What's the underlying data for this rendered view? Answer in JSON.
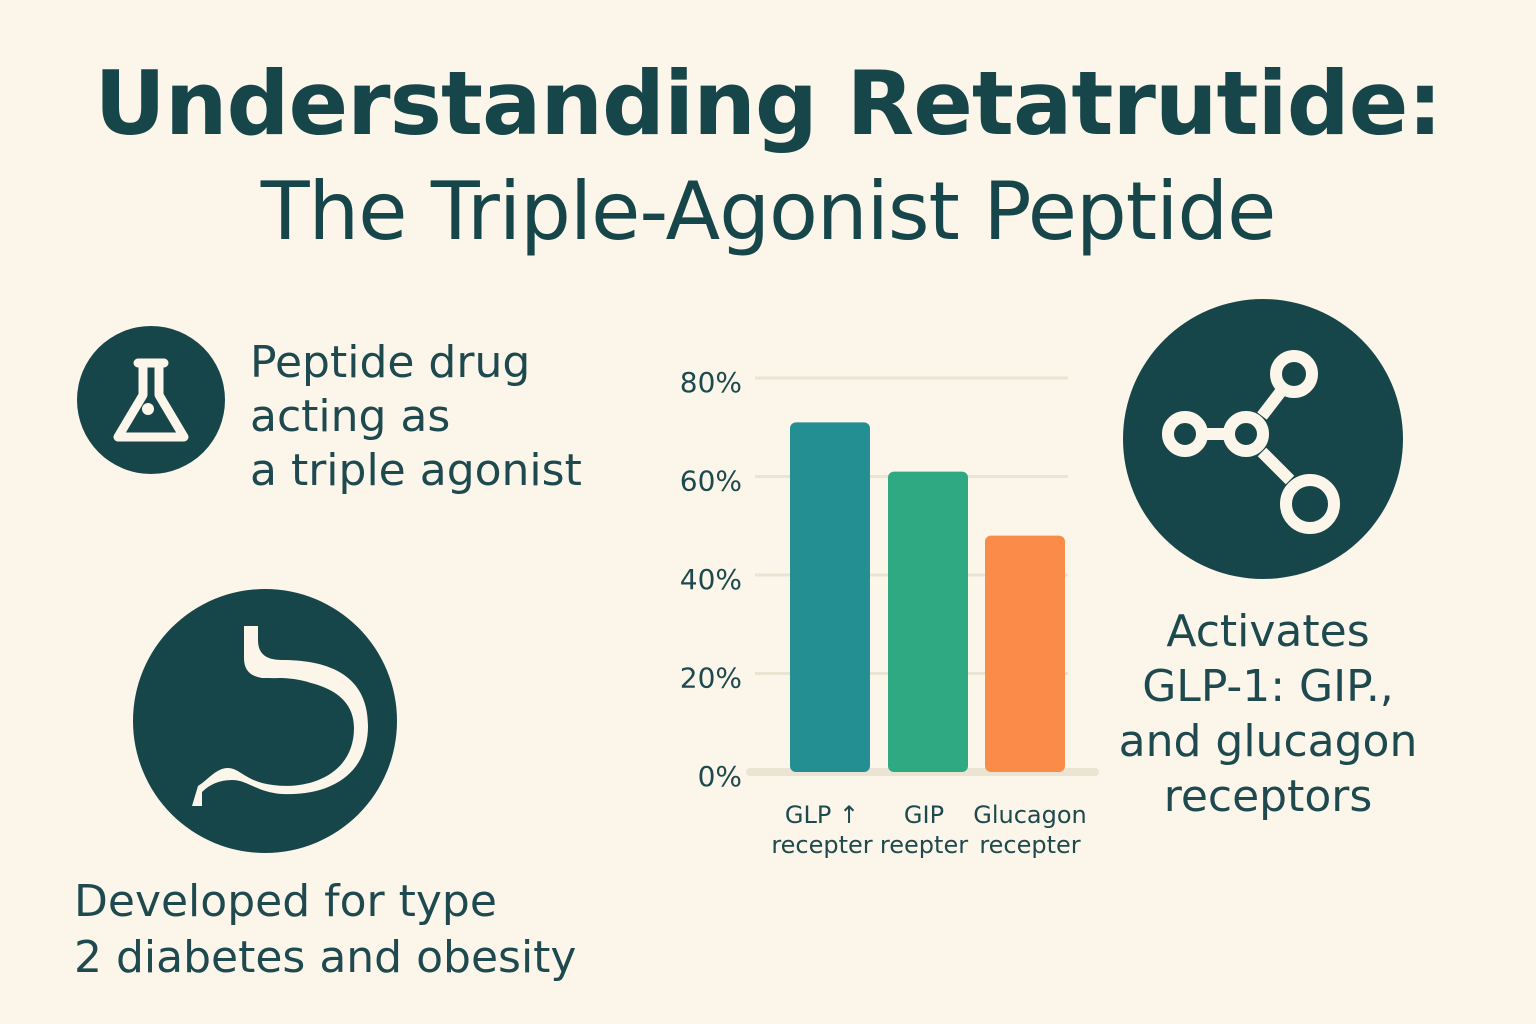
{
  "title": {
    "line1": "Understanding Retatrutide:",
    "line2": "The Triple-Agonist Peptide"
  },
  "features": {
    "peptide": {
      "icon": "flask-icon",
      "lines": [
        "Peptide drug",
        "acting as",
        "a triple agonist"
      ]
    },
    "developed": {
      "icon": "stomach-icon",
      "lines": [
        "Developed for type",
        "2 diabetes and obesity"
      ]
    },
    "activates": {
      "icon": "molecule-icon",
      "lines": [
        "Activates",
        "GLP-1: GIP.,",
        "and glucagon",
        "receptors"
      ]
    }
  },
  "colors": {
    "background": "#fcf6ea",
    "primary": "#17464a",
    "bar_glp": "#238f93",
    "bar_gip": "#2fa982",
    "bar_glucagon": "#fb8b49"
  },
  "chart_data": {
    "type": "bar",
    "categories": [
      [
        "GLP ↑",
        "recepter"
      ],
      [
        "GIP",
        "reepter"
      ],
      [
        "Glucagon",
        "recepter"
      ]
    ],
    "values": [
      71,
      61,
      48
    ],
    "colors": [
      "#238f93",
      "#2fa982",
      "#fb8b49"
    ],
    "ylim": [
      0,
      80
    ],
    "yticks": [
      "0%",
      "20%",
      "40%",
      "60%",
      "80%"
    ],
    "ytick_values": [
      0,
      20,
      40,
      60,
      80
    ],
    "grid": true
  }
}
